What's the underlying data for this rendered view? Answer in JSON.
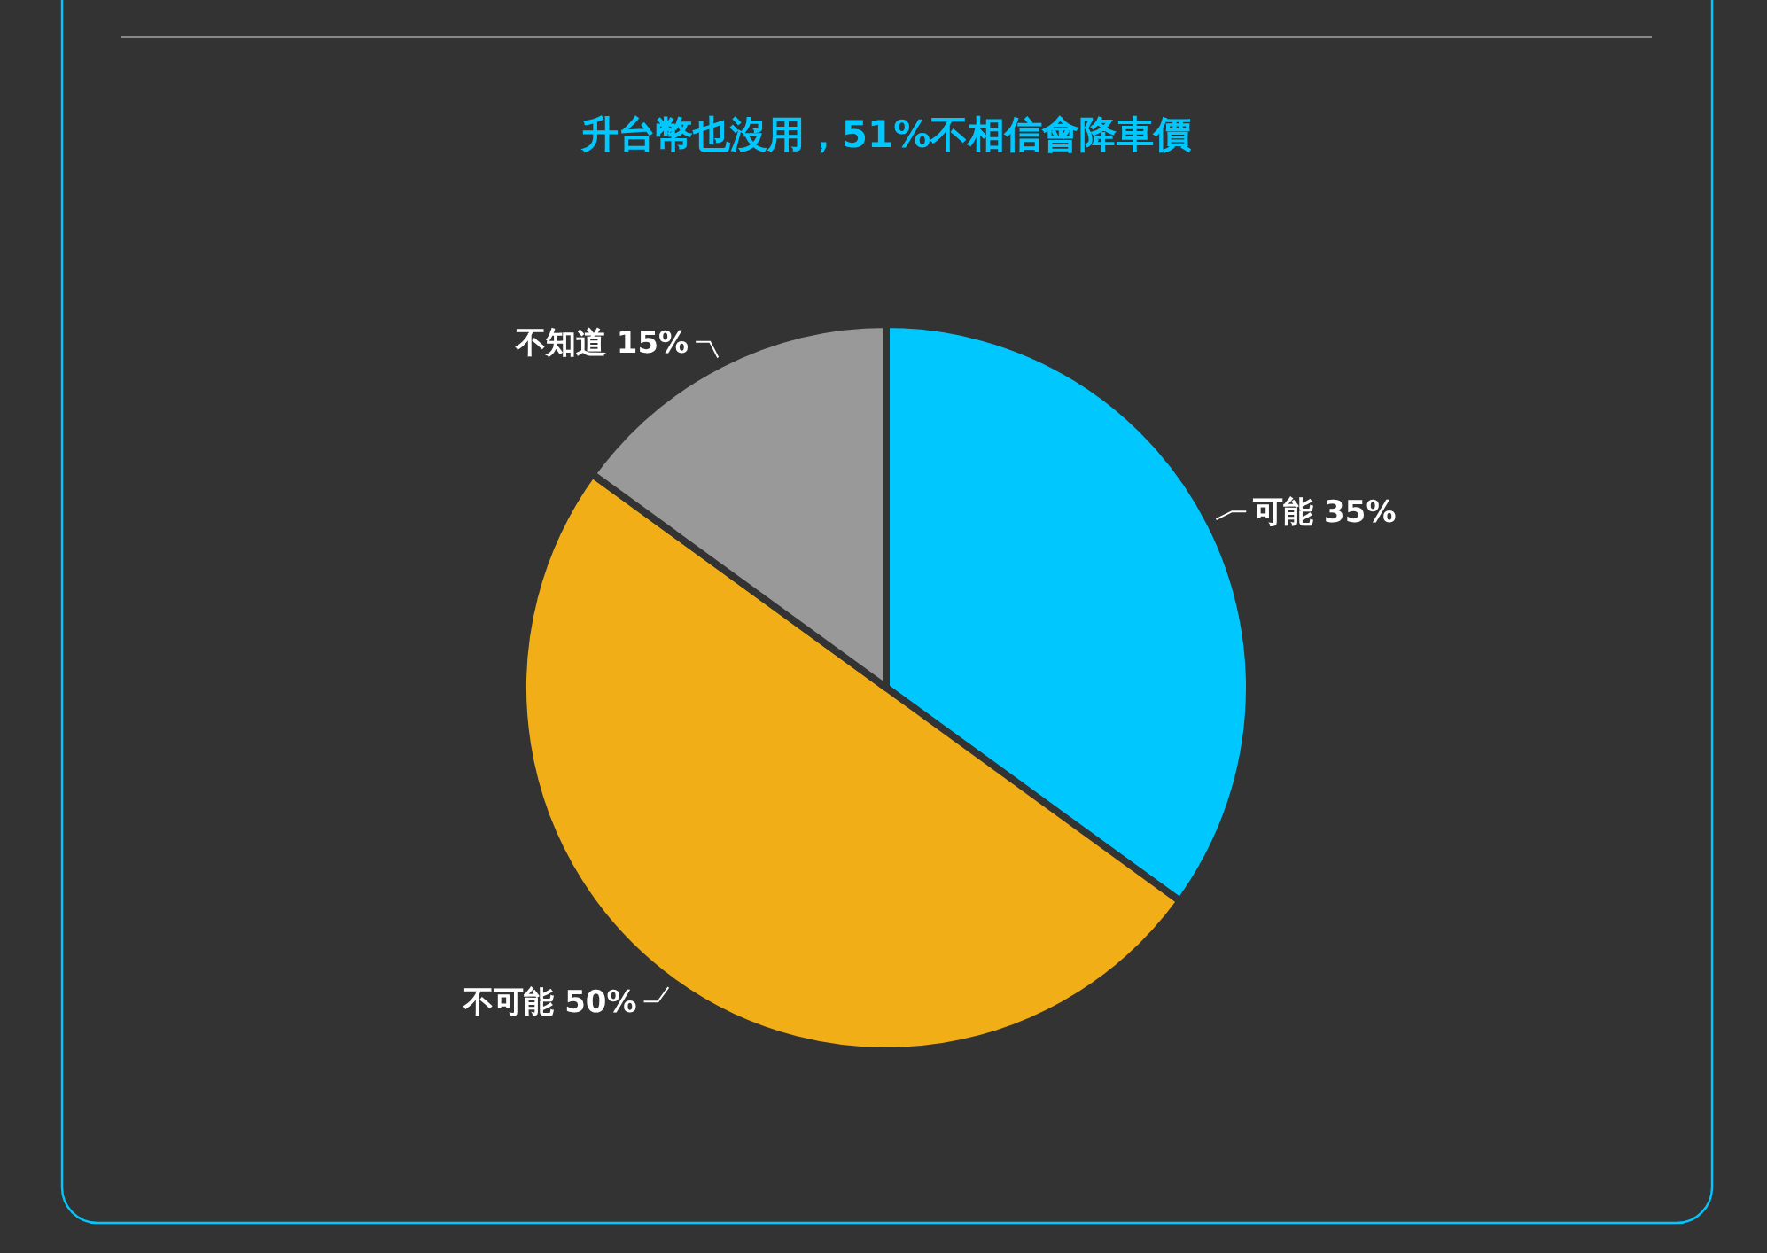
{
  "chart_data": {
    "type": "pie",
    "title": "升台幣也沒用，51%不相信會降車價",
    "categories": [
      "可能",
      "不可能",
      "不知道"
    ],
    "values": [
      35,
      50,
      15
    ],
    "value_labels": [
      "35%",
      "50%",
      "15%"
    ],
    "colors": [
      "#00c8ff",
      "#f2ae16",
      "#999999"
    ]
  }
}
